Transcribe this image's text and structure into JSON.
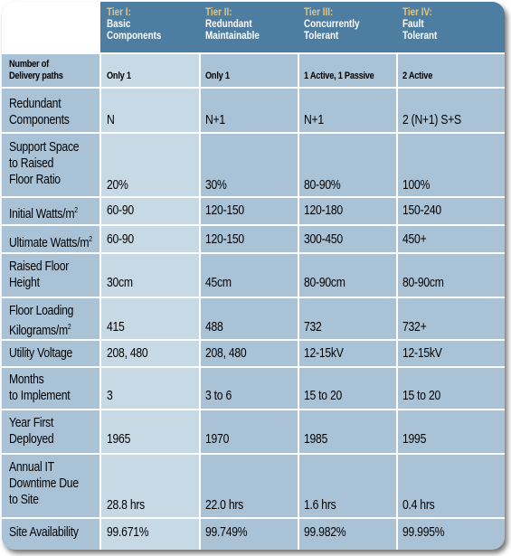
{
  "columns": [
    {
      "tier": "Tier I:",
      "name_line1": "Basic",
      "name_line2": "Components"
    },
    {
      "tier": "Tier II:",
      "name_line1": "Redundant",
      "name_line2": "Maintainable"
    },
    {
      "tier": "Tier III:",
      "name_line1": "Concurrently",
      "name_line2": "Tolerant"
    },
    {
      "tier": "Tier IV:",
      "name_line1": "Fault",
      "name_line2": "Tolerant"
    }
  ],
  "rows": [
    {
      "label": [
        "Number of",
        "Delivery paths"
      ],
      "values": [
        "Only 1",
        "Only 1",
        "1 Active, 1 Passive",
        "2 Active"
      ]
    },
    {
      "label": [
        "Redundant",
        "Components"
      ],
      "values": [
        "N",
        "N+1",
        "N+1",
        "2 (N+1) S+S"
      ]
    },
    {
      "label": [
        "Support Space",
        "to Raised",
        "Floor Ratio"
      ],
      "values": [
        "20%",
        "30%",
        "80-90%",
        "100%"
      ]
    },
    {
      "label": [
        "Initial Watts/m"
      ],
      "label_sup": "2",
      "values": [
        "60-90",
        "120-150",
        "120-180",
        "150-240"
      ]
    },
    {
      "label": [
        "Ultimate Watts/m"
      ],
      "label_sup": "2",
      "values": [
        "60-90",
        "120-150",
        "300-450",
        "450+"
      ]
    },
    {
      "label": [
        "Raised Floor",
        "Height"
      ],
      "values": [
        "30cm",
        "45cm",
        "80-90cm",
        "80-90cm"
      ]
    },
    {
      "label": [
        "Floor Loading",
        "Kilograms/m"
      ],
      "label_sup": "2",
      "values": [
        "415",
        "488",
        "732",
        "732+"
      ]
    },
    {
      "label": [
        "Utility Voltage"
      ],
      "values": [
        "208, 480",
        "208, 480",
        "12-15kV",
        "12-15kV"
      ]
    },
    {
      "label": [
        "Months",
        "to Implement"
      ],
      "values": [
        "3",
        "3 to 6",
        "15 to 20",
        "15 to 20"
      ]
    },
    {
      "label": [
        "Year First",
        "Deployed"
      ],
      "values": [
        "1965",
        "1970",
        "1985",
        "1995"
      ]
    },
    {
      "label": [
        "Annual IT",
        "Downtime Due",
        "to Site"
      ],
      "values": [
        "28.8 hrs",
        "22.0 hrs",
        "1.6 hrs",
        "0.4 hrs"
      ]
    },
    {
      "label": [
        "Site Availability"
      ],
      "values": [
        "99.671%",
        "99.749%",
        "99.982%",
        "99.995%"
      ]
    }
  ],
  "colors": {
    "header": "#4d7ea2",
    "body": "#a9c2d6",
    "tier1_column": "#c8d9e6",
    "tier_label": "#e8c47a"
  }
}
